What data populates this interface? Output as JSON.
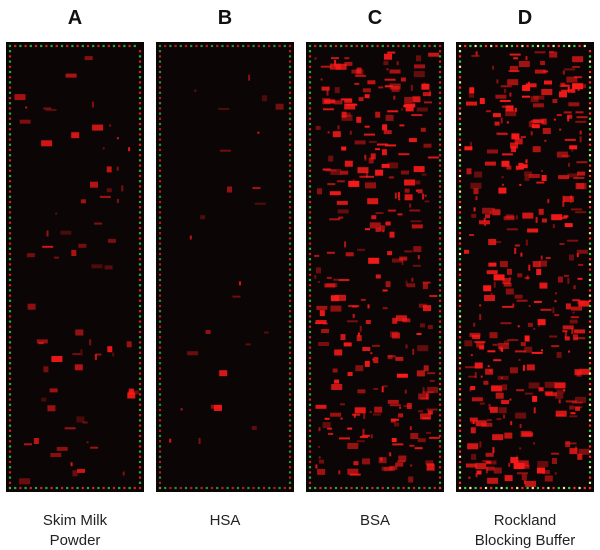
{
  "panels": [
    {
      "letter": "A",
      "caption": [
        "Skim Milk",
        "Powder"
      ]
    },
    {
      "letter": "B",
      "caption": [
        "HSA"
      ]
    },
    {
      "letter": "C",
      "caption": [
        "BSA"
      ]
    },
    {
      "letter": "D",
      "caption": [
        "Rockland",
        "Blocking Buffer"
      ]
    }
  ]
}
